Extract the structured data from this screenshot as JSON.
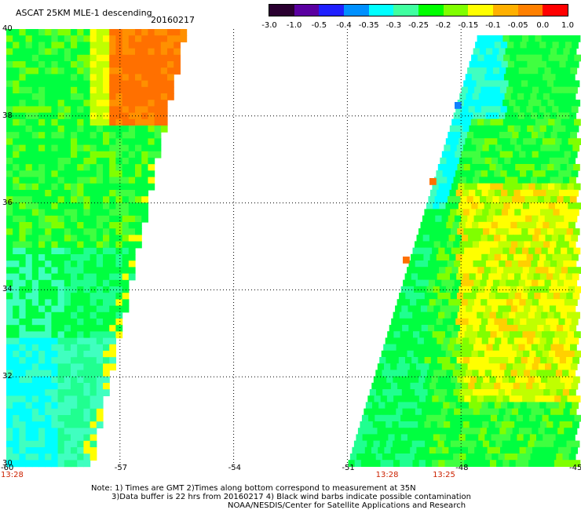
{
  "header": {
    "title": "ASCAT 25KM MLE-1 descending",
    "date": "20160217"
  },
  "colorbar": {
    "colors": [
      "#2a0030",
      "#5a00a0",
      "#2020ff",
      "#0090ff",
      "#00ffff",
      "#40ffa0",
      "#00ff00",
      "#80ff00",
      "#ffff00",
      "#ffb000",
      "#ff8000",
      "#ff0000"
    ],
    "labels": [
      "-3.0",
      "-1.0",
      "-0.5",
      "-0.4",
      "-0.35",
      "-0.3",
      "-0.25",
      "-0.2",
      "-0.15",
      "-0.1",
      "-0.05",
      "0.0",
      "1.0"
    ]
  },
  "map": {
    "lon_range": [
      -60,
      -45
    ],
    "lat_range": [
      30,
      40
    ],
    "lon_ticks": [
      {
        "value": -60,
        "label": "-60"
      },
      {
        "value": -57,
        "label": "-57"
      },
      {
        "value": -54,
        "label": "-54"
      },
      {
        "value": -51,
        "label": "-51"
      },
      {
        "value": -48,
        "label": "-48"
      },
      {
        "value": -45,
        "label": "-45"
      }
    ],
    "lat_ticks": [
      {
        "value": 40,
        "label": "40"
      },
      {
        "value": 38,
        "label": "38"
      },
      {
        "value": 36,
        "label": "36"
      },
      {
        "value": 34,
        "label": "34"
      },
      {
        "value": 32,
        "label": "32"
      },
      {
        "value": 30,
        "label": "30"
      }
    ],
    "time_labels": [
      {
        "lon": -60,
        "text": "13:28"
      },
      {
        "lon": -50,
        "text": "13:28"
      },
      {
        "lon": -48.5,
        "text": "13:25"
      }
    ]
  },
  "notes": {
    "line1": "Note: 1) Times are GMT 2)Times along bottom correspond to measurement at 35N",
    "line2": "3)Data buffer is 22 hrs from 20160217 4) Black wind barbs indicate possible contamination",
    "line3": "NOAA/NESDIS/Center for Satellite Applications and Research"
  }
}
